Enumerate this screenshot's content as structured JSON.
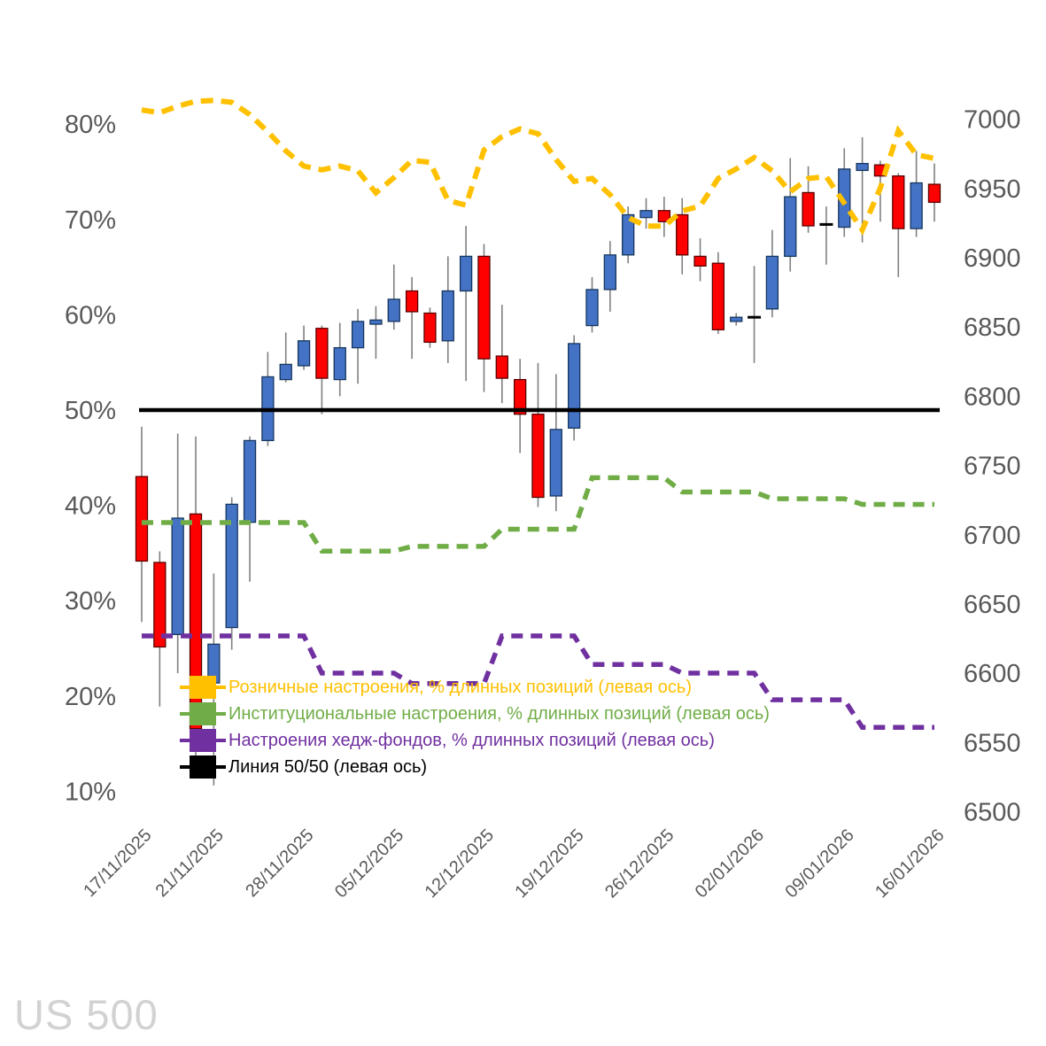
{
  "watermark": "US 500",
  "legend": {
    "items": [
      {
        "key": "retail-sentiment",
        "label": "Розничные настроения, % длинных позиций (левая ось)",
        "color": "#FFC000"
      },
      {
        "key": "institutional-sentiment",
        "label": "Институциональные настроения, % длинных позиций (левая ось)",
        "color": "#70AD47"
      },
      {
        "key": "hedge-fund-sentiment",
        "label": "Настроения хедж-фондов, % длинных позиций (левая ось)",
        "color": "#7030A0"
      },
      {
        "key": "fifty-fifty",
        "label": "Линия 50/50 (левая ось)",
        "color": "#000000"
      }
    ]
  },
  "chart_data": {
    "type": "candlestick",
    "title": "US 500",
    "legend_position": "inside-left-bottom",
    "grid": "off",
    "left_axis": {
      "unit": "%",
      "tick_labels": [
        "80%",
        "70%",
        "60%",
        "50%",
        "40%",
        "30%",
        "20%",
        "10%"
      ],
      "ylim": [
        10,
        80
      ]
    },
    "right_axis": {
      "tick_labels": [
        "7000",
        "6950",
        "6900",
        "6850",
        "6800",
        "6750",
        "6700",
        "6650",
        "6600",
        "6550",
        "6500"
      ],
      "ylim": [
        6500,
        7000
      ]
    },
    "x_axis": {
      "tick_labels": [
        "17/11/2025",
        "21/11/2025",
        "28/11/2025",
        "05/12/2025",
        "12/12/2025",
        "19/12/2025",
        "26/12/2025",
        "02/01/2026",
        "09/01/2026",
        "16/01/2026"
      ],
      "tick_candle_index": [
        0,
        4,
        9,
        14,
        19,
        24,
        29,
        34,
        39,
        44
      ],
      "n_candles": 45
    },
    "candle_colors": {
      "up": "#4472C4",
      "up_border": "#17375E",
      "down": "#FF0000",
      "down_border": "#5A0000",
      "doji": "#000000",
      "wick": "#808080"
    },
    "candles_ohlc": [
      [
        6742,
        6778,
        6637,
        6681
      ],
      [
        6680,
        6688,
        6576,
        6619
      ],
      [
        6628,
        6773,
        6600,
        6712
      ],
      [
        6715,
        6771,
        6535,
        6560
      ],
      [
        6593,
        6672,
        6519,
        6621
      ],
      [
        6633,
        6727,
        6617,
        6722
      ],
      [
        6709,
        6771,
        6666,
        6768
      ],
      [
        6768,
        6832,
        6764,
        6814
      ],
      [
        6812,
        6846,
        6810,
        6823
      ],
      [
        6822,
        6851,
        6819,
        6840
      ],
      [
        6849,
        6851,
        6787,
        6813
      ],
      [
        6812,
        6853,
        6800,
        6835
      ],
      [
        6835,
        6863,
        6809,
        6854
      ],
      [
        6852,
        6865,
        6827,
        6855
      ],
      [
        6854,
        6895,
        6848,
        6870
      ],
      [
        6876,
        6886,
        6827,
        6861
      ],
      [
        6860,
        6864,
        6835,
        6839
      ],
      [
        6840,
        6901,
        6824,
        6876
      ],
      [
        6876,
        6923,
        6811,
        6901
      ],
      [
        6901,
        6910,
        6803,
        6827
      ],
      [
        6829,
        6866,
        6795,
        6813
      ],
      [
        6812,
        6827,
        6759,
        6787
      ],
      [
        6787,
        6824,
        6720,
        6727
      ],
      [
        6728,
        6816,
        6717,
        6776
      ],
      [
        6777,
        6844,
        6768,
        6838
      ],
      [
        6851,
        6886,
        6846,
        6877
      ],
      [
        6877,
        6912,
        6861,
        6902
      ],
      [
        6902,
        6937,
        6896,
        6931
      ],
      [
        6929,
        6943,
        6921,
        6934
      ],
      [
        6934,
        6944,
        6915,
        6926
      ],
      [
        6931,
        6943,
        6888,
        6902
      ],
      [
        6901,
        6914,
        6883,
        6894
      ],
      [
        6896,
        6904,
        6845,
        6848
      ],
      [
        6854,
        6860,
        6851,
        6857
      ],
      [
        6857,
        6894,
        6824,
        6857
      ],
      [
        6863,
        6920,
        6857,
        6901
      ],
      [
        6901,
        6972,
        6890,
        6944
      ],
      [
        6947,
        6966,
        6918,
        6923
      ],
      [
        6924,
        6937,
        6895,
        6924
      ],
      [
        6922,
        6979,
        6915,
        6964
      ],
      [
        6963,
        6987,
        6911,
        6968
      ],
      [
        6967,
        6970,
        6926,
        6959
      ],
      [
        6959,
        6961,
        6886,
        6921
      ],
      [
        6921,
        6977,
        6915,
        6954
      ],
      [
        6953,
        6968,
        6926,
        6940
      ]
    ],
    "series": [
      {
        "key": "retail-sentiment",
        "name": "Розничные настроения, % длинных позиций (левая ось)",
        "axis": "left",
        "color": "#FFC000",
        "style": "dashed",
        "width": 6,
        "dash": "14 9",
        "values": [
          81.5,
          81.2,
          81.9,
          82.4,
          82.5,
          82.3,
          81.0,
          79.2,
          77.2,
          75.6,
          75.2,
          75.6,
          75.1,
          72.8,
          74.4,
          76.2,
          76.0,
          72.0,
          71.5,
          77.3,
          78.7,
          79.5,
          79.0,
          76.3,
          74.0,
          74.3,
          72.6,
          70.2,
          69.3,
          69.3,
          70.9,
          71.4,
          74.3,
          75.3,
          76.5,
          75.1,
          72.9,
          74.3,
          74.5,
          71.7,
          68.9,
          73.3,
          79.3,
          76.8,
          76.4
        ]
      },
      {
        "key": "institutional-sentiment",
        "name": "Институциональные настроения, % длинных позиций (левая ось)",
        "axis": "left",
        "color": "#70AD47",
        "style": "dashed",
        "width": 5.5,
        "dash": "13 9",
        "values": [
          38.2,
          38.2,
          38.2,
          38.2,
          38.2,
          38.2,
          38.2,
          38.2,
          38.2,
          38.2,
          35.2,
          35.2,
          35.2,
          35.2,
          35.2,
          35.7,
          35.7,
          35.7,
          35.7,
          35.7,
          37.5,
          37.5,
          37.5,
          37.5,
          37.5,
          42.9,
          42.9,
          42.9,
          42.9,
          42.9,
          41.4,
          41.4,
          41.4,
          41.4,
          41.4,
          40.7,
          40.7,
          40.7,
          40.7,
          40.7,
          40.1,
          40.1,
          40.1,
          40.1,
          40.1
        ]
      },
      {
        "key": "hedge-fund-sentiment",
        "name": "Настроения хедж-фондов, % длинных позиций (левая ось)",
        "axis": "left",
        "color": "#7030A0",
        "style": "dashed",
        "width": 5.5,
        "dash": "13 9",
        "values": [
          26.3,
          26.3,
          26.3,
          26.3,
          26.3,
          26.3,
          26.3,
          26.3,
          26.3,
          26.3,
          22.4,
          22.4,
          22.4,
          22.4,
          22.4,
          21.3,
          21.3,
          21.3,
          21.3,
          21.3,
          26.3,
          26.3,
          26.3,
          26.3,
          26.3,
          23.3,
          23.3,
          23.3,
          23.3,
          23.3,
          22.4,
          22.4,
          22.4,
          22.4,
          22.4,
          19.6,
          19.6,
          19.6,
          19.6,
          19.6,
          16.7,
          16.7,
          16.7,
          16.7,
          16.7
        ]
      },
      {
        "key": "fifty-fifty",
        "name": "Линия 50/50 (левая ось)",
        "axis": "left",
        "color": "#000000",
        "style": "solid",
        "width": 4.5,
        "value": 50
      }
    ]
  }
}
